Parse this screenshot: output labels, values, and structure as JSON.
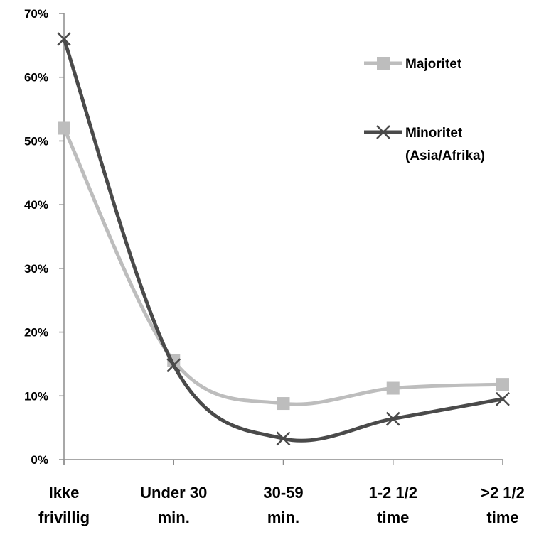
{
  "chart_data": {
    "type": "line",
    "title": "",
    "xlabel": "",
    "ylabel": "",
    "categories": [
      [
        "Ikke",
        "frivillig"
      ],
      [
        "Under 30",
        "min."
      ],
      [
        "30-59",
        "min."
      ],
      [
        "1-2 1/2",
        "time"
      ],
      [
        ">2 1/2",
        "time"
      ]
    ],
    "y_ticks": [
      "0%",
      "10%",
      "20%",
      "30%",
      "40%",
      "50%",
      "60%",
      "70%"
    ],
    "ylim": [
      0,
      70
    ],
    "y_unit": "%",
    "grid": false,
    "legend_position": "top-right",
    "series": [
      {
        "name": "Majoritet",
        "legend_lines": [
          "Majoritet"
        ],
        "values": [
          52,
          15.5,
          8.8,
          11.2,
          11.8
        ],
        "color": "#bdbdbd",
        "marker": "square"
      },
      {
        "name": "Minoritet (Asia/Afrika)",
        "legend_lines": [
          "Minoritet",
          "(Asia/Afrika)"
        ],
        "values": [
          66,
          14.8,
          3.3,
          6.4,
          9.5
        ],
        "color": "#4a4a4a",
        "marker": "x"
      }
    ]
  }
}
